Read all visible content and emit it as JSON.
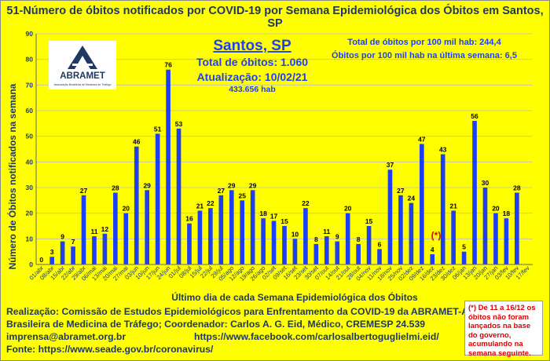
{
  "title": "51-Número de óbitos notificados por COVID-19 por Semana Epidemiológica dos Óbitos  em Santos, SP",
  "logo": {
    "name": "ABRAMET",
    "subtitle": "Associação Brasileira de Medicina de Tráfego"
  },
  "info": {
    "city": "Santos, SP",
    "total": "Total de óbitos: 1.060",
    "updated": "Atualização: 10/02/21",
    "population": "433.656 hab",
    "rate_total": "Total de óbitos por 100 mil hab: 244,4",
    "rate_last": "Óbitos por 100 mil hab na última semana: 6,5"
  },
  "asterisk": "(*)",
  "footer": {
    "line1": "Realização: Comissão de Estudos Epidemiológicos para Enfrentamento da COVID-19 da ABRAMET-Associação",
    "line2": "Brasileira de Medicina de Tráfego; Coordenador: Carlos A. G. Eid, Médico, CREMESP 24.539",
    "email": "imprensa@abramet.org.br",
    "facebook": "https://www.facebook.com/carlosalbertoguglielmi.eid/",
    "source": "Fonte: https://www.seade.gov.br/coronavirus/"
  },
  "note": "(*) De 11 a 16/12 os óbitos não foram lançados na base do governo, acumulando na semana seguinte.",
  "chart_data": {
    "type": "bar",
    "xlabel": "Último dia de cada Semana Epidemiológica dos Óbitos",
    "ylabel": "Número de Óbitos notificados na semana",
    "ylim": [
      0,
      90
    ],
    "yticks": [
      0,
      10,
      20,
      30,
      40,
      50,
      60,
      70,
      80,
      90
    ],
    "bar_color": "#1f3ff5",
    "categories": [
      "01/abr",
      "08/abr",
      "15/abr",
      "22/abr",
      "29/abr",
      "06/mai",
      "13/mai",
      "20/mai",
      "27/mai",
      "03/jun",
      "10/jun",
      "17/jun",
      "24/jun",
      "01/jul",
      "08/jul",
      "15/jul",
      "22/jul",
      "29/jul",
      "05/ago",
      "12/ago",
      "19/ago",
      "26/ago",
      "02/set",
      "09/set",
      "16/set",
      "23/set",
      "30/set",
      "07/out",
      "14/out",
      "21/out",
      "28/out",
      "04/nov",
      "11/nov",
      "18/nov",
      "25/nov",
      "02/dez",
      "09/dez",
      "16/dez",
      "23/dez",
      "30/dez",
      "06/jan",
      "13/jan",
      "20/jan",
      "27/jan",
      "03/fev",
      "10/fev",
      "17/fev"
    ],
    "values": [
      0,
      3,
      9,
      7,
      27,
      11,
      12,
      28,
      20,
      46,
      29,
      51,
      76,
      53,
      16,
      21,
      22,
      27,
      29,
      25,
      29,
      18,
      17,
      15,
      10,
      22,
      8,
      11,
      9,
      20,
      8,
      15,
      6,
      37,
      27,
      24,
      47,
      4,
      43,
      21,
      5,
      56,
      30,
      20,
      18,
      28,
      null
    ]
  }
}
